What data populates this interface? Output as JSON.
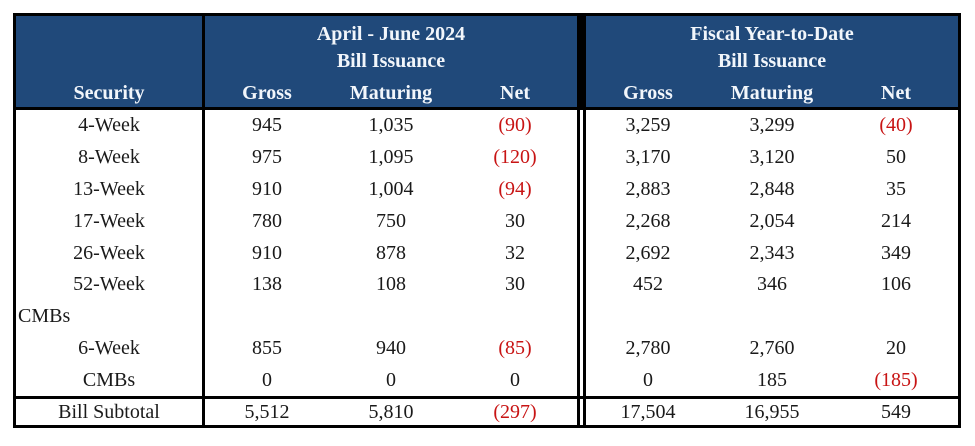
{
  "colors": {
    "header_bg": "#20497A",
    "header_text": "#F2F6FB",
    "negative": "#C81414",
    "border": "#000000",
    "body_text": "#1A1A1A"
  },
  "table": {
    "security_header": "Security",
    "sections": [
      {
        "title": "April - June 2024",
        "subtitle": "Bill Issuance",
        "columns": [
          "Gross",
          "Maturing",
          "Net"
        ]
      },
      {
        "title": "Fiscal Year-to-Date",
        "subtitle": "Bill Issuance",
        "columns": [
          "Gross",
          "Maturing",
          "Net"
        ]
      }
    ],
    "rows": [
      {
        "security": "4-Week",
        "group": false,
        "q": [
          "945",
          "1,035",
          "(90)"
        ],
        "fytd": [
          "3,259",
          "3,299",
          "(40)"
        ]
      },
      {
        "security": "8-Week",
        "group": false,
        "q": [
          "975",
          "1,095",
          "(120)"
        ],
        "fytd": [
          "3,170",
          "3,120",
          "50"
        ]
      },
      {
        "security": "13-Week",
        "group": false,
        "q": [
          "910",
          "1,004",
          "(94)"
        ],
        "fytd": [
          "2,883",
          "2,848",
          "35"
        ]
      },
      {
        "security": "17-Week",
        "group": false,
        "q": [
          "780",
          "750",
          "30"
        ],
        "fytd": [
          "2,268",
          "2,054",
          "214"
        ]
      },
      {
        "security": "26-Week",
        "group": false,
        "q": [
          "910",
          "878",
          "32"
        ],
        "fytd": [
          "2,692",
          "2,343",
          "349"
        ]
      },
      {
        "security": "52-Week",
        "group": false,
        "q": [
          "138",
          "108",
          "30"
        ],
        "fytd": [
          "452",
          "346",
          "106"
        ]
      },
      {
        "security": "CMBs",
        "group": true,
        "q": [
          "",
          "",
          ""
        ],
        "fytd": [
          "",
          "",
          ""
        ]
      },
      {
        "security": "6-Week",
        "group": false,
        "q": [
          "855",
          "940",
          "(85)"
        ],
        "fytd": [
          "2,780",
          "2,760",
          "20"
        ]
      },
      {
        "security": "CMBs",
        "group": false,
        "q": [
          "0",
          "0",
          "0"
        ],
        "fytd": [
          "0",
          "185",
          "(185)"
        ]
      }
    ],
    "subtotal": {
      "label": "Bill Subtotal",
      "q": [
        "5,512",
        "5,810",
        "(297)"
      ],
      "fytd": [
        "17,504",
        "16,955",
        "549"
      ]
    }
  }
}
